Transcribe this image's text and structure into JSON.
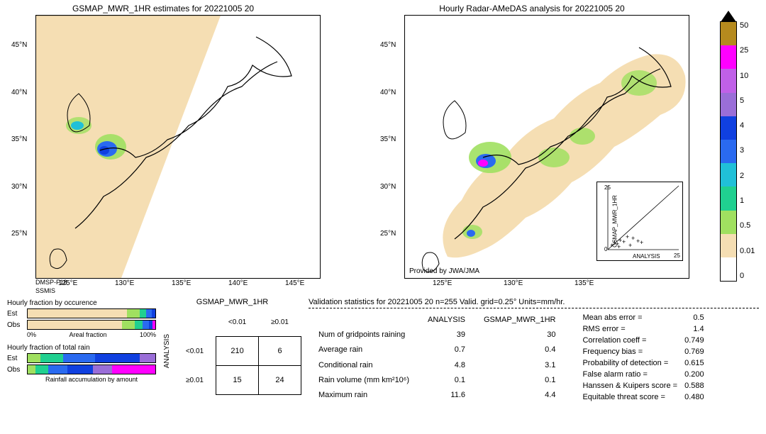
{
  "left_map": {
    "title": "GSMAP_MWR_1HR estimates for 20221005 20",
    "footnote1": "DMSP-F18",
    "footnote2": "SSMIS",
    "lat_ticks": [
      "45°N",
      "40°N",
      "35°N",
      "30°N",
      "25°N"
    ],
    "lon_ticks": [
      "125°E",
      "130°E",
      "135°E",
      "140°E",
      "145°E"
    ],
    "swath_color": "#f5deb3"
  },
  "right_map": {
    "title": "Hourly Radar-AMeDAS analysis for 20221005 20",
    "provider": "Provided by JWA/JMA",
    "lat_ticks": [
      "45°N",
      "40°N",
      "35°N",
      "30°N",
      "25°N"
    ],
    "lon_ticks": [
      "125°E",
      "130°E",
      "135°E"
    ],
    "coverage_color": "#f5deb3",
    "scatter": {
      "xlabel": "ANALYSIS",
      "ylabel": "GSMAP_MWR_1HR",
      "xlim": [
        0,
        25
      ],
      "ylim": [
        0,
        25
      ],
      "ticks": [
        0,
        25
      ]
    }
  },
  "colorbar": {
    "colors": [
      "#b58a1e",
      "#ff00ff",
      "#c060e8",
      "#9a6ed8",
      "#1040e0",
      "#2a6af0",
      "#20c0d8",
      "#20d090",
      "#a0e060",
      "#f5deb3",
      "#ffffff"
    ],
    "labels": [
      "50",
      "25",
      "10",
      "5",
      "4",
      "3",
      "2",
      "1",
      "0.5",
      "0.01",
      "0"
    ]
  },
  "occurrence": {
    "title": "Hourly fraction by occurence",
    "rows": [
      {
        "label": "Est",
        "segs": [
          {
            "w": 78,
            "c": "#f5deb3"
          },
          {
            "w": 10,
            "c": "#a0e060"
          },
          {
            "w": 5,
            "c": "#20d090"
          },
          {
            "w": 4,
            "c": "#2a6af0"
          },
          {
            "w": 3,
            "c": "#1040e0"
          }
        ]
      },
      {
        "label": "Obs",
        "segs": [
          {
            "w": 74,
            "c": "#f5deb3"
          },
          {
            "w": 10,
            "c": "#a0e060"
          },
          {
            "w": 6,
            "c": "#20d090"
          },
          {
            "w": 5,
            "c": "#2a6af0"
          },
          {
            "w": 3,
            "c": "#1040e0"
          },
          {
            "w": 2,
            "c": "#ff00ff"
          }
        ]
      }
    ],
    "xaxis_label": "Areal fraction",
    "xaxis_left": "0%",
    "xaxis_right": "100%"
  },
  "totalrain": {
    "title": "Hourly fraction of total rain",
    "rows": [
      {
        "label": "Est",
        "segs": [
          {
            "w": 10,
            "c": "#a0e060"
          },
          {
            "w": 18,
            "c": "#20d090"
          },
          {
            "w": 25,
            "c": "#2a6af0"
          },
          {
            "w": 35,
            "c": "#1040e0"
          },
          {
            "w": 12,
            "c": "#9a6ed8"
          }
        ]
      },
      {
        "label": "Obs",
        "segs": [
          {
            "w": 6,
            "c": "#a0e060"
          },
          {
            "w": 10,
            "c": "#20d090"
          },
          {
            "w": 15,
            "c": "#2a6af0"
          },
          {
            "w": 20,
            "c": "#1040e0"
          },
          {
            "w": 15,
            "c": "#9a6ed8"
          },
          {
            "w": 34,
            "c": "#ff00ff"
          }
        ]
      }
    ],
    "footer": "Rainfall accumulation by amount"
  },
  "confusion": {
    "col_title": "GSMAP_MWR_1HR",
    "col_heads": [
      "<0.01",
      "≥0.01"
    ],
    "row_title": "ANALYSIS",
    "row_heads": [
      "<0.01",
      "≥0.01"
    ],
    "cells": [
      [
        210,
        6
      ],
      [
        15,
        24
      ]
    ]
  },
  "validation": {
    "title": "Validation statistics for 20221005 20  n=255 Valid. grid=0.25° Units=mm/hr.",
    "columns": [
      "ANALYSIS",
      "GSMAP_MWR_1HR"
    ],
    "rows": [
      {
        "name": "Num of gridpoints raining",
        "a": "39",
        "b": "30"
      },
      {
        "name": "Average rain",
        "a": "0.7",
        "b": "0.4"
      },
      {
        "name": "Conditional rain",
        "a": "4.8",
        "b": "3.1"
      },
      {
        "name": "Rain volume (mm km²10⁶)",
        "a": "0.1",
        "b": "0.1"
      },
      {
        "name": "Maximum rain",
        "a": "11.6",
        "b": "4.4"
      }
    ],
    "scores": [
      {
        "name": "Mean abs error =",
        "v": "0.5"
      },
      {
        "name": "RMS error =",
        "v": "1.4"
      },
      {
        "name": "Correlation coeff =",
        "v": "0.749"
      },
      {
        "name": "Frequency bias =",
        "v": "0.769"
      },
      {
        "name": "Probability of detection =",
        "v": "0.615"
      },
      {
        "name": "False alarm ratio =",
        "v": "0.200"
      },
      {
        "name": "Hanssen & Kuipers score =",
        "v": "0.588"
      },
      {
        "name": "Equitable threat score =",
        "v": "0.480"
      }
    ]
  }
}
